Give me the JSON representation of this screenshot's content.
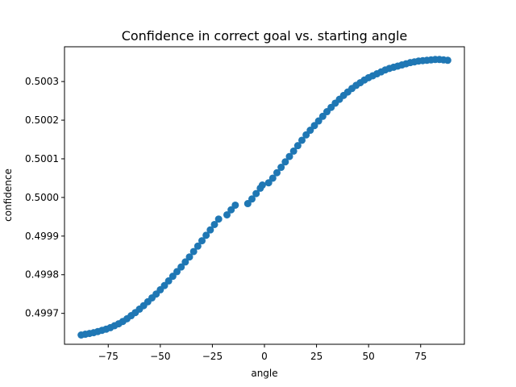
{
  "chart_data": {
    "type": "scatter",
    "title": "Confidence in correct goal vs. starting angle",
    "xlabel": "angle",
    "ylabel": "confidence",
    "xlim": [
      -96,
      96
    ],
    "ylim": [
      0.49962,
      0.50039
    ],
    "x_ticks": [
      -75,
      -50,
      -25,
      0,
      25,
      50,
      75
    ],
    "x_tick_labels": [
      "−75",
      "−50",
      "−25",
      "0",
      "25",
      "50",
      "75"
    ],
    "y_ticks": [
      0.4997,
      0.4998,
      0.4999,
      0.5,
      0.5001,
      0.5002,
      0.5003
    ],
    "y_tick_labels": [
      "0.4997",
      "0.4998",
      "0.4999",
      "0.5000",
      "0.5001",
      "0.5002",
      "0.5003"
    ],
    "grid": false,
    "marker_color": "#1f77b4",
    "series": [
      {
        "x": [
          -88,
          -86,
          -84,
          -82,
          -80,
          -78,
          -76,
          -74,
          -72,
          -70,
          -68,
          -66,
          -64,
          -62,
          -60,
          -58,
          -56,
          -54,
          -52,
          -50,
          -48,
          -46,
          -44,
          -42,
          -40,
          -38,
          -36,
          -34,
          -32,
          -30,
          -28,
          -26,
          -24,
          -22,
          -18,
          -16,
          -14,
          -8,
          -6,
          -4,
          -2,
          -1,
          2,
          4,
          6,
          8,
          10,
          12,
          14,
          16,
          18,
          20,
          22,
          24,
          26,
          28,
          30,
          32,
          34,
          36,
          38,
          40,
          42,
          44,
          46,
          48,
          50,
          52,
          54,
          56,
          58,
          60,
          62,
          64,
          66,
          68,
          70,
          72,
          74,
          76,
          78,
          80,
          82,
          84,
          86,
          88
        ],
        "y": [
          0.499644,
          0.499646,
          0.499648,
          0.49965,
          0.499653,
          0.499656,
          0.499659,
          0.499663,
          0.499668,
          0.499673,
          0.499679,
          0.499686,
          0.499694,
          0.499702,
          0.499711,
          0.49972,
          0.49973,
          0.49974,
          0.49975,
          0.499761,
          0.499772,
          0.499784,
          0.499796,
          0.499808,
          0.49982,
          0.499833,
          0.499846,
          0.49986,
          0.499874,
          0.499888,
          0.499902,
          0.499916,
          0.49993,
          0.499944,
          0.499955,
          0.499968,
          0.49998,
          0.499984,
          0.499996,
          0.50001,
          0.500024,
          0.500032,
          0.500038,
          0.50005,
          0.500064,
          0.500078,
          0.500092,
          0.500106,
          0.50012,
          0.500134,
          0.500148,
          0.500162,
          0.500174,
          0.500186,
          0.500198,
          0.50021,
          0.500222,
          0.500233,
          0.500244,
          0.500254,
          0.500264,
          0.500273,
          0.500282,
          0.50029,
          0.500297,
          0.500304,
          0.50031,
          0.500315,
          0.50032,
          0.500325,
          0.50033,
          0.500334,
          0.500337,
          0.50034,
          0.500343,
          0.500346,
          0.500349,
          0.500351,
          0.500353,
          0.500354,
          0.500355,
          0.500356,
          0.500357,
          0.500357,
          0.500356,
          0.500355
        ]
      }
    ]
  }
}
